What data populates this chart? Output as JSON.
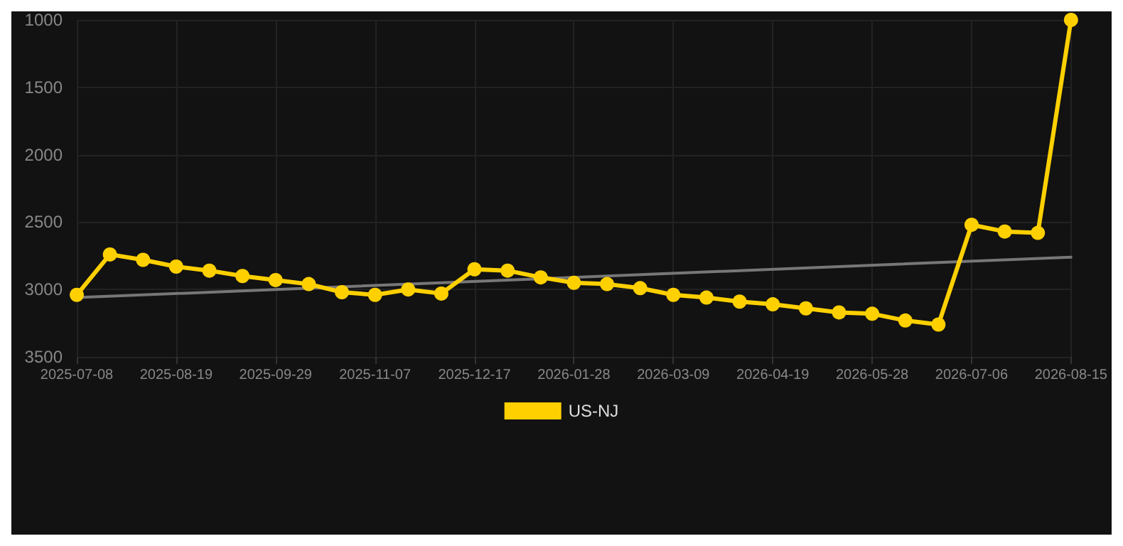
{
  "chart_data": {
    "type": "line",
    "categories": [
      "2025-07-08",
      null,
      null,
      "2025-08-19",
      null,
      null,
      "2025-09-29",
      null,
      null,
      "2025-11-07",
      null,
      null,
      "2025-12-17",
      null,
      null,
      "2026-01-28",
      null,
      null,
      "2026-03-09",
      null,
      null,
      "2026-04-19",
      null,
      null,
      "2026-05-28",
      null,
      null,
      "2026-07-06",
      null,
      null,
      "2026-08-15"
    ],
    "series": [
      {
        "name": "US-NJ",
        "color": "#ffd000",
        "values": [
          3040,
          2740,
          2780,
          2830,
          2860,
          2900,
          2930,
          2960,
          3020,
          3040,
          3000,
          3030,
          2850,
          2860,
          2910,
          2950,
          2960,
          2990,
          3040,
          3060,
          3090,
          3110,
          3140,
          3170,
          3180,
          3230,
          3260,
          2520,
          2570,
          2580,
          1000
        ]
      },
      {
        "type": "line",
        "color": "#777777",
        "values": [
          3060,
          null,
          null,
          null,
          null,
          null,
          null,
          null,
          null,
          null,
          null,
          null,
          null,
          null,
          null,
          null,
          null,
          null,
          null,
          null,
          null,
          null,
          null,
          null,
          null,
          null,
          null,
          null,
          null,
          null,
          2760
        ],
        "marker": "none"
      }
    ],
    "ylim": [
      3500,
      1000
    ],
    "yticks": [
      1000,
      1500,
      2000,
      2500,
      3000,
      3500
    ],
    "grid": true,
    "legend": "bottom",
    "marker": "circle",
    "line_style": "solid"
  }
}
